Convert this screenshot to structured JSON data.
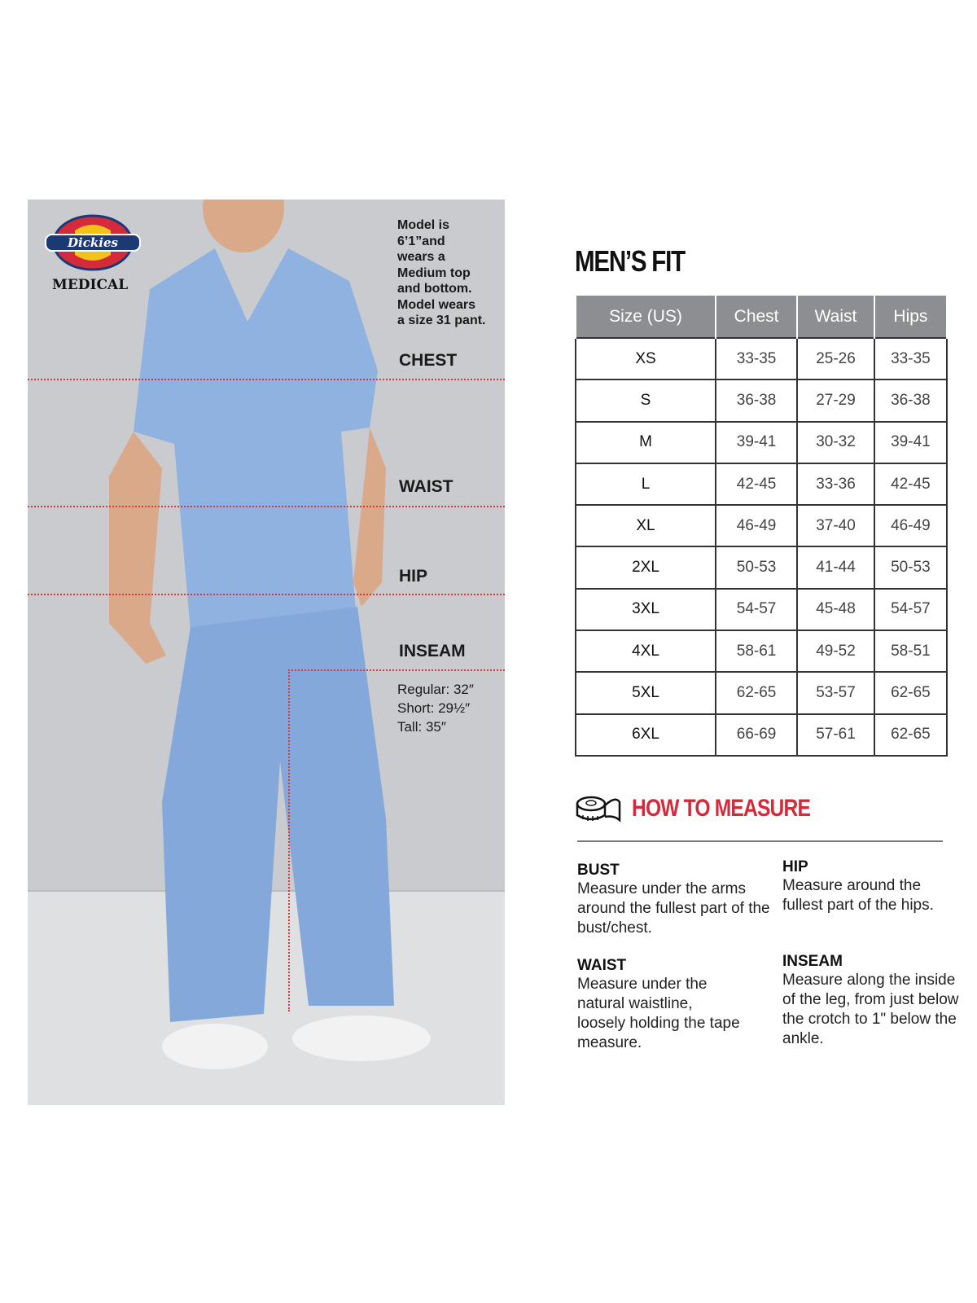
{
  "brand": {
    "logo_text": "Dickies",
    "sub": "MEDICAL"
  },
  "photo": {
    "model_note": "Model is\n6’1”and\nwears a\nMedium top\nand bottom.\nModel wears\na size 31 pant.",
    "labels": {
      "chest": "CHEST",
      "waist": "WAIST",
      "hip": "HIP",
      "inseam": "INSEAM"
    },
    "inseam_lengths": [
      "Regular: 32″",
      "Short: 29½″",
      "Tall: 35″"
    ],
    "line_color": "#d9363e"
  },
  "fit": {
    "title": "MEN’S FIT",
    "headers": [
      "Size (US)",
      "Chest",
      "Waist",
      "Hips"
    ],
    "rows": [
      [
        "XS",
        "33-35",
        "25-26",
        "33-35"
      ],
      [
        "S",
        "36-38",
        "27-29",
        "36-38"
      ],
      [
        "M",
        "39-41",
        "30-32",
        "39-41"
      ],
      [
        "L",
        "42-45",
        "33-36",
        "42-45"
      ],
      [
        "XL",
        "46-49",
        "37-40",
        "46-49"
      ],
      [
        "2XL",
        "50-53",
        "41-44",
        "50-53"
      ],
      [
        "3XL",
        "54-57",
        "45-48",
        "54-57"
      ],
      [
        "4XL",
        "58-61",
        "49-52",
        "58-51"
      ],
      [
        "5XL",
        "62-65",
        "53-57",
        "62-65"
      ],
      [
        "6XL",
        "66-69",
        "57-61",
        "62-65"
      ]
    ]
  },
  "measure": {
    "title": "HOW TO MEASURE",
    "icon": "tape-measure-icon",
    "accent": "#d42a3a",
    "items": [
      {
        "title": "BUST",
        "text": "Measure under the arms around the fullest part of the bust/chest."
      },
      {
        "title": "HIP",
        "text": "Measure around the fullest part of the hips."
      },
      {
        "title": "WAIST",
        "text": "Measure under the natural waistline, loosely holding the tape measure."
      },
      {
        "title": "INSEAM",
        "text": "Measure along the inside of the leg, from just below the crotch to 1\" below the ankle."
      }
    ]
  }
}
